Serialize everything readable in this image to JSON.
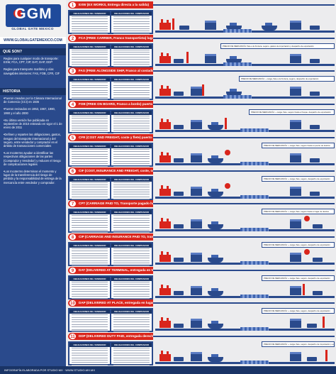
{
  "brand": {
    "logo": "GGM",
    "subtitle": "GLOBAL GATE MEXICO",
    "website": "WWW.GLOBALGATEMEXICO.COM"
  },
  "sidebar": {
    "sections": [
      {
        "title": "QUE SON?",
        "paragraphs": [
          "Reglas para cualquier modo de transporte: EXW, FCA, CPT, CIP, DAT, DAP, DDP",
          "Reglas para transporte marítimo y vías navegables interiores: FAS, FOB, CFR, CIF"
        ]
      },
      {
        "title": "HISTORIA",
        "paragraphs": [
          "•Fueron creados por la Cámara Internacional de Comercio (CCI) en 1936",
          "•Fueron revisados en 1953, 1967, 1980, 1990 y el año 2000",
          "•Su última versión fue publicada en septiembre de 2010 entrando en vigor el 1 de enero de 2011",
          "•Definen y reparten las obligaciones, gastos, riesgos del transporte internacional y del seguro, entre vendedor y comprador en el ámbito de transacciones comerciales",
          "•Los Incoterms ayudan a identificar las respectivas obligaciones de las partes (Comprador y Vendedor) y reducen el riesgo de complicaciones legales",
          "•Los Incoterms determinan el momento y lugar de la transferencia del riesgo de pérdida y la responsabilidad de entrega de la mercancía entre vendedor y comprador."
        ]
      }
    ]
  },
  "obligation_labels": {
    "seller": "OBLIGACIONES DEL VENDEDOR",
    "buyer": "OBLIGACIONES DEL COMPRADOR"
  },
  "terms": [
    {
      "num": "1",
      "title": "EXW (EX WORKS, Entrega directa a la salida)",
      "price": ""
    },
    {
      "num": "2",
      "title": "FCA (FREE CARRIER, Franco transportista) lugar convenido",
      "price": "PRECIO DE MERCANCÍA: flete a la frontera, seguro, gastos de importación y despacho de exportación"
    },
    {
      "num": "3",
      "title": "FAS (FREE ALONGSIDE SHIP, Franco al costado del buque) puerto de carga convenido",
      "price": "PRECIO DE MERCANCÍA: + carga, flete a la frontera, seguro, despacho de exportación"
    },
    {
      "num": "4",
      "title": "FOB (FREE ON BOARD, Franco a bordo) puerto de carga convenido",
      "price": "PRECIO DE MERCANCÍA: + carga, flete, seguro hasta el buque, despacho de exportación"
    },
    {
      "num": "5",
      "title": "CFR (COST AND FREIGHT, coste y flete) puerto de destino convenido",
      "price": "PRECIO DE MERCANCÍA: + carga, flete, seguro hasta el puerto de destino"
    },
    {
      "num": "6",
      "title": "CIF (COST, INSURANCE AND FREIGHT, coste, seguro y flete) puerto de destino convenido",
      "price": "PRECIO DE MERCANCÍA: + carga, flete, seguro, despacho de exportación"
    },
    {
      "num": "7",
      "title": "CPT (CARRIAGE PAID TO, Transporte pagado hasta) lugar de destino convenido",
      "price": "PRECIO DE MERCANCÍA: + carga, flete, seguro hasta el lugar de destino"
    },
    {
      "num": "8",
      "title": "CIP (CARRIAGE AND INSURANCE PAID TO, transporte y seguro pagados hasta) lugar de destino",
      "price": "PRECIO DE MERCANCÍA: + carga, flete, seguro, despacho de exportación"
    },
    {
      "num": "9",
      "title": "DAT (DELIVERED AT TERMINAL, entregada en terminal) lugar de destino convenido",
      "price": "PRECIO DE MERCANCÍA: + carga, flete, seguro, despacho de exportación"
    },
    {
      "num": "10",
      "title": "DAP (DELIVERED AT PLACE, entregada en lugar)",
      "price": "PRECIO DE MERCANCÍA: + carga, flete, seguro, despacho de exportación"
    },
    {
      "num": "11",
      "title": "DDP (DELIVERED DUTY PAID, entregada derechos pagados)",
      "price": "PRECIO DE MERCANCÍA: + carga, flete, seguro, despacho de importación y exportación"
    }
  ],
  "footer": "INFOGRAFÍA ELABORADA POR STUDIO MX · WWW.STUDIO-MX.MX",
  "colors": {
    "red": "#d9251c",
    "navy": "#2a4a8c",
    "dark": "#1a3466"
  }
}
